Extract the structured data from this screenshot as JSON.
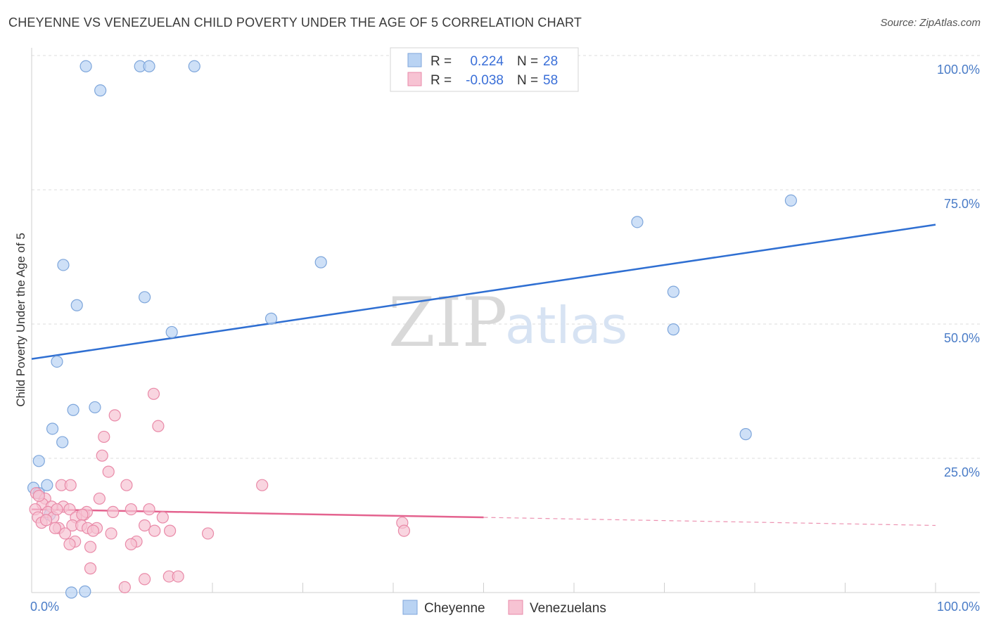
{
  "header": {
    "title": "CHEYENNE VS VENEZUELAN CHILD POVERTY UNDER THE AGE OF 5 CORRELATION CHART",
    "source": "Source: ZipAtlas.com"
  },
  "watermark": {
    "zip": "ZIP",
    "atlas": "atlas"
  },
  "colors": {
    "cheyenne_fill": "#b9d3f3",
    "cheyenne_stroke": "#7ea6db",
    "cheyenne_line": "#2f6fd2",
    "venezuelan_fill": "#f7c3d3",
    "venezuelan_stroke": "#e98aa8",
    "venezuelan_line": "#e4638f",
    "grid": "#dddddd"
  },
  "legend": {
    "rows": [
      {
        "r_label": "R =",
        "r_value": "0.224",
        "n_label": "N =",
        "n_value": "28"
      },
      {
        "r_label": "R =",
        "r_value": "-0.038",
        "n_label": "N =",
        "n_value": "58"
      }
    ]
  },
  "chart_data": {
    "type": "scatter",
    "title": "CHEYENNE VS VENEZUELAN CHILD POVERTY UNDER THE AGE OF 5 CORRELATION CHART",
    "xlabel": "",
    "ylabel": "Child Poverty Under the Age of 5",
    "xlim": [
      0,
      100
    ],
    "ylim": [
      0,
      100
    ],
    "x_tick_labels": [
      "0.0%",
      "100.0%"
    ],
    "y_ticks": [
      25,
      50,
      75,
      100
    ],
    "y_tick_labels": [
      "25.0%",
      "50.0%",
      "75.0%",
      "100.0%"
    ],
    "grid": true,
    "series": [
      {
        "name": "Cheyenne",
        "points": [
          [
            6,
            98
          ],
          [
            12,
            98
          ],
          [
            13,
            98
          ],
          [
            18,
            98
          ],
          [
            7.6,
            93.5
          ],
          [
            84,
            73
          ],
          [
            67,
            69
          ],
          [
            32,
            61.5
          ],
          [
            3.5,
            61
          ],
          [
            12.5,
            55
          ],
          [
            71,
            56
          ],
          [
            5,
            53.5
          ],
          [
            26.5,
            51
          ],
          [
            15.5,
            48.5
          ],
          [
            71,
            49
          ],
          [
            2.8,
            43
          ],
          [
            7,
            34.5
          ],
          [
            4.6,
            34
          ],
          [
            2.3,
            30.5
          ],
          [
            3.4,
            28
          ],
          [
            79,
            29.5
          ],
          [
            0.8,
            24.5
          ],
          [
            1.7,
            20
          ],
          [
            0.2,
            19.5
          ],
          [
            0.8,
            18.5
          ],
          [
            2,
            14.5
          ],
          [
            4.4,
            0
          ],
          [
            5.9,
            0.2
          ]
        ],
        "trend": {
          "x": [
            0,
            100
          ],
          "y": [
            43.5,
            68.5
          ]
        }
      },
      {
        "name": "Venezuelans",
        "points": [
          [
            13.5,
            37
          ],
          [
            9.2,
            33
          ],
          [
            14,
            31
          ],
          [
            8,
            29
          ],
          [
            7.8,
            25.5
          ],
          [
            8.5,
            22.5
          ],
          [
            10.5,
            20
          ],
          [
            3.3,
            20
          ],
          [
            4.3,
            20
          ],
          [
            25.5,
            20
          ],
          [
            0.5,
            18.5
          ],
          [
            1.5,
            17.5
          ],
          [
            7.5,
            17.5
          ],
          [
            1.2,
            16.5
          ],
          [
            2.2,
            16
          ],
          [
            3.5,
            16
          ],
          [
            4.2,
            15.5
          ],
          [
            11,
            15.5
          ],
          [
            0.4,
            15.5
          ],
          [
            1.8,
            15
          ],
          [
            5.8,
            14.5
          ],
          [
            6.1,
            15
          ],
          [
            9,
            15
          ],
          [
            13,
            15.5
          ],
          [
            2.4,
            14
          ],
          [
            4.9,
            14
          ],
          [
            5.6,
            14.5
          ],
          [
            0.7,
            14
          ],
          [
            14.5,
            14
          ],
          [
            1.1,
            13
          ],
          [
            4.5,
            12.5
          ],
          [
            5.5,
            12.5
          ],
          [
            3,
            12
          ],
          [
            6.2,
            12
          ],
          [
            12.5,
            12.5
          ],
          [
            2.6,
            12
          ],
          [
            7.2,
            12
          ],
          [
            3.7,
            11
          ],
          [
            8.8,
            11
          ],
          [
            13.6,
            11.5
          ],
          [
            15.3,
            11.5
          ],
          [
            19.5,
            11
          ],
          [
            6.8,
            11.5
          ],
          [
            41,
            13
          ],
          [
            41.2,
            11.5
          ],
          [
            4.8,
            9.5
          ],
          [
            11.6,
            9.5
          ],
          [
            4.2,
            9
          ],
          [
            11,
            9
          ],
          [
            6.5,
            8.5
          ],
          [
            6.5,
            4.5
          ],
          [
            12.5,
            2.5
          ],
          [
            15.2,
            3
          ],
          [
            16.2,
            3
          ],
          [
            10.3,
            1
          ],
          [
            0.8,
            18
          ],
          [
            2.8,
            15.5
          ],
          [
            1.6,
            13.5
          ]
        ],
        "trend": {
          "x": [
            0,
            50
          ],
          "y": [
            15.5,
            14.0
          ]
        },
        "trend_dashed": {
          "x": [
            50,
            100
          ],
          "y": [
            14.0,
            12.5
          ]
        }
      }
    ]
  },
  "bottom_legend": {
    "items": [
      "Cheyenne",
      "Venezuelans"
    ]
  }
}
